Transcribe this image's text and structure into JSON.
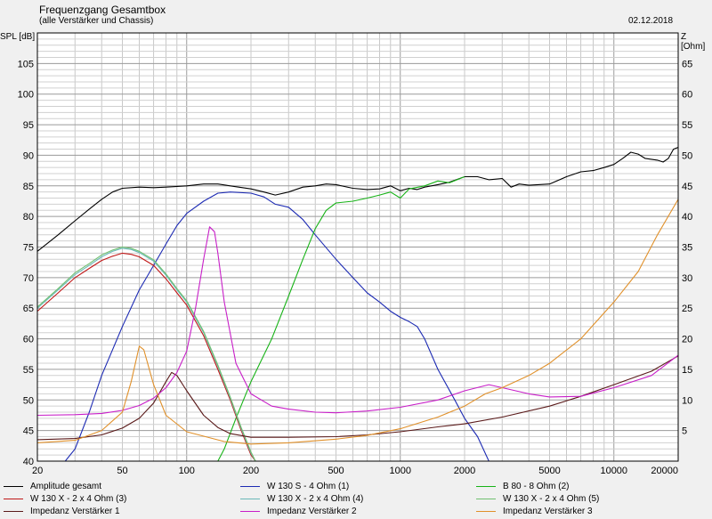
{
  "header": {
    "title": "Frequenzgang Gesamtbox",
    "subtitle": "(alle Verstärker und Chassis)",
    "date": "02.12.2018"
  },
  "chart_data": {
    "type": "line",
    "title": "Frequenzgang Gesamtbox",
    "subtitle": "(alle Verstärker und Chassis)",
    "xscale": "log",
    "xlim": [
      20,
      20000
    ],
    "ylim_left": [
      40,
      110
    ],
    "ylim_right": [
      0,
      70
    ],
    "ylabel_left": "SPL [dB]",
    "ylabel_right": "Z [Ohm]",
    "grid": true,
    "legend_position": "bottom",
    "x_ticks": [
      {
        "v": 20,
        "label": "20"
      },
      {
        "v": 50,
        "label": "50"
      },
      {
        "v": 100,
        "label": "100"
      },
      {
        "v": 200,
        "label": "200"
      },
      {
        "v": 500,
        "label": "500"
      },
      {
        "v": 1000,
        "label": "1000"
      },
      {
        "v": 2000,
        "label": "2000"
      },
      {
        "v": 5000,
        "label": "5000"
      },
      {
        "v": 10000,
        "label": "10000"
      },
      {
        "v": 20000,
        "label": "20000"
      }
    ],
    "y_ticks_left": [
      {
        "v": 40,
        "label": "40"
      },
      {
        "v": 45,
        "label": "45"
      },
      {
        "v": 50,
        "label": "50"
      },
      {
        "v": 55,
        "label": "55"
      },
      {
        "v": 60,
        "label": "60"
      },
      {
        "v": 65,
        "label": "65"
      },
      {
        "v": 70,
        "label": "70"
      },
      {
        "v": 75,
        "label": "75"
      },
      {
        "v": 80,
        "label": "80"
      },
      {
        "v": 85,
        "label": "85"
      },
      {
        "v": 90,
        "label": "90"
      },
      {
        "v": 95,
        "label": "95"
      },
      {
        "v": 100,
        "label": "100"
      },
      {
        "v": 105,
        "label": "105"
      }
    ],
    "y_ticks_right": [
      {
        "v": 5,
        "label": "5"
      },
      {
        "v": 10,
        "label": "10"
      },
      {
        "v": 15,
        "label": "15"
      },
      {
        "v": 20,
        "label": "20"
      },
      {
        "v": 25,
        "label": "25"
      },
      {
        "v": 30,
        "label": "30"
      },
      {
        "v": 35,
        "label": "35"
      },
      {
        "v": 40,
        "label": "40"
      },
      {
        "v": 45,
        "label": "45"
      },
      {
        "v": 50,
        "label": "50"
      },
      {
        "v": 55,
        "label": "55"
      },
      {
        "v": 60,
        "label": "60"
      },
      {
        "v": 65,
        "label": "65"
      }
    ],
    "series": [
      {
        "name": "Amplitude gesamt",
        "axis": "left",
        "color": "#000000",
        "points": [
          [
            20,
            74.3
          ],
          [
            25,
            77
          ],
          [
            30,
            79.3
          ],
          [
            35,
            81.2
          ],
          [
            40,
            82.8
          ],
          [
            45,
            84
          ],
          [
            50,
            84.6
          ],
          [
            60,
            84.8
          ],
          [
            70,
            84.7
          ],
          [
            80,
            84.8
          ],
          [
            100,
            85
          ],
          [
            120,
            85.3
          ],
          [
            140,
            85.3
          ],
          [
            160,
            85
          ],
          [
            200,
            84.5
          ],
          [
            230,
            84
          ],
          [
            260,
            83.5
          ],
          [
            300,
            84
          ],
          [
            350,
            84.8
          ],
          [
            400,
            85
          ],
          [
            450,
            85.3
          ],
          [
            500,
            85.2
          ],
          [
            600,
            84.6
          ],
          [
            700,
            84.4
          ],
          [
            800,
            84.5
          ],
          [
            900,
            85
          ],
          [
            1000,
            84.2
          ],
          [
            1100,
            84.6
          ],
          [
            1200,
            84.4
          ],
          [
            1300,
            84.8
          ],
          [
            1500,
            85.2
          ],
          [
            1700,
            85.6
          ],
          [
            2000,
            86.5
          ],
          [
            2300,
            86.5
          ],
          [
            2600,
            86
          ],
          [
            3000,
            86.2
          ],
          [
            3300,
            84.8
          ],
          [
            3600,
            85.3
          ],
          [
            4000,
            85.1
          ],
          [
            5000,
            85.3
          ],
          [
            6000,
            86.5
          ],
          [
            7000,
            87.3
          ],
          [
            8000,
            87.5
          ],
          [
            9000,
            88
          ],
          [
            10000,
            88.5
          ],
          [
            11000,
            89.5
          ],
          [
            12000,
            90.5
          ],
          [
            13000,
            90.2
          ],
          [
            14000,
            89.5
          ],
          [
            16000,
            89.2
          ],
          [
            17000,
            88.9
          ],
          [
            18000,
            89.5
          ],
          [
            19000,
            91
          ],
          [
            20000,
            91.3
          ]
        ]
      },
      {
        "name": "W 130 S - 4 Ohm (1)",
        "axis": "left",
        "color": "#1c2ab3",
        "points": [
          [
            27,
            40
          ],
          [
            30,
            42
          ],
          [
            35,
            48
          ],
          [
            40,
            54
          ],
          [
            50,
            62
          ],
          [
            60,
            68
          ],
          [
            70,
            72
          ],
          [
            80,
            75.5
          ],
          [
            90,
            78.5
          ],
          [
            100,
            80.5
          ],
          [
            120,
            82.5
          ],
          [
            140,
            83.8
          ],
          [
            160,
            84
          ],
          [
            200,
            83.8
          ],
          [
            230,
            83.2
          ],
          [
            260,
            82
          ],
          [
            300,
            81.5
          ],
          [
            350,
            79.5
          ],
          [
            400,
            77
          ],
          [
            500,
            73
          ],
          [
            600,
            70
          ],
          [
            700,
            67.5
          ],
          [
            800,
            66
          ],
          [
            900,
            64.5
          ],
          [
            1000,
            63.5
          ],
          [
            1100,
            62.8
          ],
          [
            1200,
            62
          ],
          [
            1300,
            60
          ],
          [
            1500,
            55
          ],
          [
            1800,
            50
          ],
          [
            2000,
            47
          ],
          [
            2300,
            44
          ],
          [
            2600,
            40
          ]
        ]
      },
      {
        "name": "B 80 - 8 Ohm (2)",
        "axis": "left",
        "color": "#17b317",
        "points": [
          [
            140,
            40
          ],
          [
            150,
            42
          ],
          [
            170,
            47
          ],
          [
            200,
            53
          ],
          [
            250,
            60
          ],
          [
            300,
            67
          ],
          [
            350,
            73
          ],
          [
            400,
            78
          ],
          [
            450,
            81
          ],
          [
            500,
            82.2
          ],
          [
            600,
            82.5
          ],
          [
            700,
            83
          ],
          [
            800,
            83.5
          ],
          [
            900,
            84
          ],
          [
            1000,
            83
          ],
          [
            1100,
            84.5
          ],
          [
            1300,
            85
          ],
          [
            1500,
            85.8
          ],
          [
            1700,
            85.5
          ],
          [
            2000,
            86.5
          ]
        ]
      },
      {
        "name": "W 130 X - 2 x 4 Ohm (3)",
        "axis": "left",
        "color": "#c01818",
        "points": [
          [
            20,
            64.5
          ],
          [
            25,
            67.5
          ],
          [
            30,
            70
          ],
          [
            35,
            71.5
          ],
          [
            40,
            72.8
          ],
          [
            45,
            73.5
          ],
          [
            50,
            74
          ],
          [
            55,
            73.8
          ],
          [
            60,
            73.4
          ],
          [
            70,
            72
          ],
          [
            80,
            69.8
          ],
          [
            90,
            67.5
          ],
          [
            100,
            65.5
          ],
          [
            120,
            60.5
          ],
          [
            140,
            55
          ],
          [
            160,
            50
          ],
          [
            180,
            45
          ],
          [
            200,
            41
          ],
          [
            210,
            40
          ]
        ]
      },
      {
        "name": "W 130 X - 2 x 4 Ohm (4)",
        "axis": "left",
        "color": "#6ab8b8",
        "points": [
          [
            20,
            65
          ],
          [
            25,
            68
          ],
          [
            30,
            70.5
          ],
          [
            35,
            72
          ],
          [
            40,
            73.4
          ],
          [
            45,
            74.3
          ],
          [
            50,
            74.8
          ],
          [
            55,
            74.6
          ],
          [
            60,
            74.1
          ],
          [
            70,
            72.7
          ],
          [
            80,
            70.4
          ],
          [
            90,
            68
          ],
          [
            100,
            66
          ],
          [
            120,
            61
          ],
          [
            140,
            55.5
          ],
          [
            160,
            50.3
          ],
          [
            180,
            45.3
          ],
          [
            200,
            41.3
          ],
          [
            210,
            40
          ]
        ]
      },
      {
        "name": "W 130 X - 2 x 4 Ohm (5)",
        "axis": "left",
        "color": "#70c070",
        "points": [
          [
            20,
            65.2
          ],
          [
            25,
            68.2
          ],
          [
            30,
            70.8
          ],
          [
            35,
            72.3
          ],
          [
            40,
            73.7
          ],
          [
            45,
            74.5
          ],
          [
            50,
            75
          ],
          [
            55,
            74.8
          ],
          [
            60,
            74.3
          ],
          [
            70,
            72.9
          ],
          [
            80,
            70.6
          ],
          [
            90,
            68.2
          ],
          [
            100,
            66.2
          ],
          [
            120,
            61.2
          ],
          [
            140,
            55.7
          ],
          [
            160,
            50.5
          ],
          [
            180,
            45.5
          ],
          [
            200,
            41.5
          ],
          [
            210,
            40
          ]
        ]
      },
      {
        "name": "Impedanz Verstärker 1",
        "axis": "right",
        "color": "#5a1a1a",
        "points": [
          [
            20,
            3.5
          ],
          [
            30,
            3.7
          ],
          [
            40,
            4.3
          ],
          [
            50,
            5.4
          ],
          [
            60,
            7
          ],
          [
            70,
            9.5
          ],
          [
            80,
            13
          ],
          [
            85,
            14.5
          ],
          [
            90,
            14
          ],
          [
            100,
            11.5
          ],
          [
            120,
            7.5
          ],
          [
            140,
            5.5
          ],
          [
            160,
            4.5
          ],
          [
            200,
            3.9
          ],
          [
            300,
            3.9
          ],
          [
            500,
            4
          ],
          [
            700,
            4.3
          ],
          [
            1000,
            4.8
          ],
          [
            1500,
            5.6
          ],
          [
            2000,
            6.1
          ],
          [
            3000,
            7.2
          ],
          [
            5000,
            9
          ],
          [
            7000,
            10.6
          ],
          [
            10000,
            12.5
          ],
          [
            15000,
            14.7
          ],
          [
            20000,
            17.2
          ]
        ]
      },
      {
        "name": "Impedanz Verstärker 2",
        "axis": "right",
        "color": "#c81ec8",
        "points": [
          [
            20,
            7.5
          ],
          [
            30,
            7.6
          ],
          [
            40,
            7.8
          ],
          [
            50,
            8.3
          ],
          [
            60,
            9.1
          ],
          [
            70,
            10.3
          ],
          [
            80,
            12
          ],
          [
            90,
            14.5
          ],
          [
            100,
            18
          ],
          [
            110,
            25
          ],
          [
            120,
            33
          ],
          [
            128,
            38.3
          ],
          [
            135,
            37.5
          ],
          [
            140,
            34
          ],
          [
            150,
            26
          ],
          [
            170,
            16
          ],
          [
            200,
            11
          ],
          [
            250,
            9
          ],
          [
            300,
            8.5
          ],
          [
            400,
            8
          ],
          [
            500,
            7.9
          ],
          [
            700,
            8.2
          ],
          [
            1000,
            8.8
          ],
          [
            1500,
            10
          ],
          [
            2000,
            11.5
          ],
          [
            2600,
            12.5
          ],
          [
            3000,
            12
          ],
          [
            4000,
            11
          ],
          [
            5000,
            10.5
          ],
          [
            7000,
            10.6
          ],
          [
            10000,
            12
          ],
          [
            15000,
            14
          ],
          [
            20000,
            17.3
          ]
        ]
      },
      {
        "name": "Impedanz Verstärker 3",
        "axis": "right",
        "color": "#e0902a",
        "points": [
          [
            20,
            3
          ],
          [
            30,
            3.4
          ],
          [
            40,
            5
          ],
          [
            50,
            8
          ],
          [
            55,
            13
          ],
          [
            60,
            18.8
          ],
          [
            63,
            18.2
          ],
          [
            70,
            12.5
          ],
          [
            80,
            7.5
          ],
          [
            100,
            4.8
          ],
          [
            150,
            3.2
          ],
          [
            200,
            2.8
          ],
          [
            300,
            3
          ],
          [
            500,
            3.6
          ],
          [
            700,
            4.2
          ],
          [
            1000,
            5.3
          ],
          [
            1500,
            7.2
          ],
          [
            2000,
            9
          ],
          [
            2500,
            11
          ],
          [
            3000,
            12
          ],
          [
            4000,
            14
          ],
          [
            5000,
            16
          ],
          [
            7000,
            20
          ],
          [
            10000,
            26
          ],
          [
            13000,
            31
          ],
          [
            16000,
            37
          ],
          [
            20000,
            42.8
          ]
        ]
      }
    ]
  }
}
